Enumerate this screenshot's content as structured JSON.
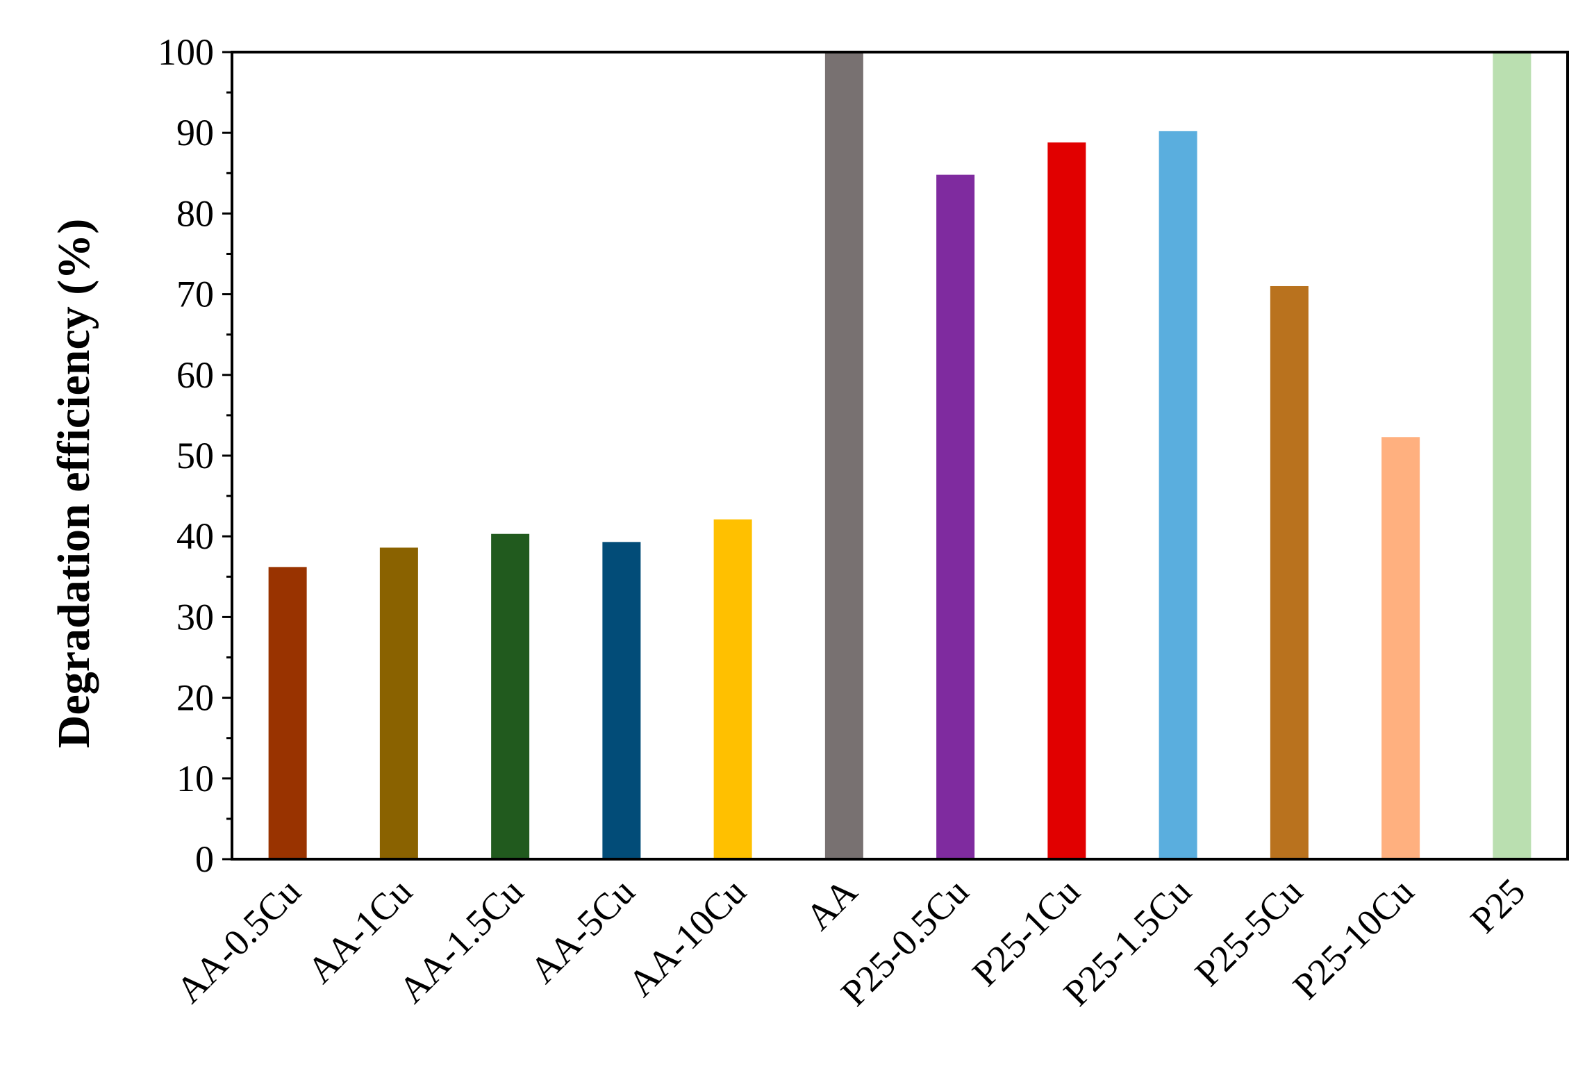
{
  "chart_data": {
    "type": "bar",
    "title": "",
    "xlabel": "",
    "ylabel": "Degradation efficiency (%)",
    "ylim": [
      0,
      100
    ],
    "yticks": [
      0,
      10,
      20,
      30,
      40,
      50,
      60,
      70,
      80,
      90,
      100
    ],
    "grid": false,
    "categories": [
      "AA-0.5Cu",
      "AA-1Cu",
      "AA-1.5Cu",
      "AA-5Cu",
      "AA-10Cu",
      "AA",
      "P25-0.5Cu",
      "P25-1Cu",
      "P25-1.5Cu",
      "P25-5Cu",
      "P25-10Cu",
      "P25"
    ],
    "values": [
      36.2,
      38.6,
      40.3,
      39.3,
      42.1,
      100,
      84.8,
      88.8,
      90.2,
      71.0,
      52.3,
      100
    ],
    "colors": [
      "#993300",
      "#8A6200",
      "#215A1E",
      "#024C78",
      "#FFC000",
      "#787171",
      "#7F2B9F",
      "#E10000",
      "#5AAEDE",
      "#B9721E",
      "#FFB07F",
      "#BADFB0"
    ]
  }
}
